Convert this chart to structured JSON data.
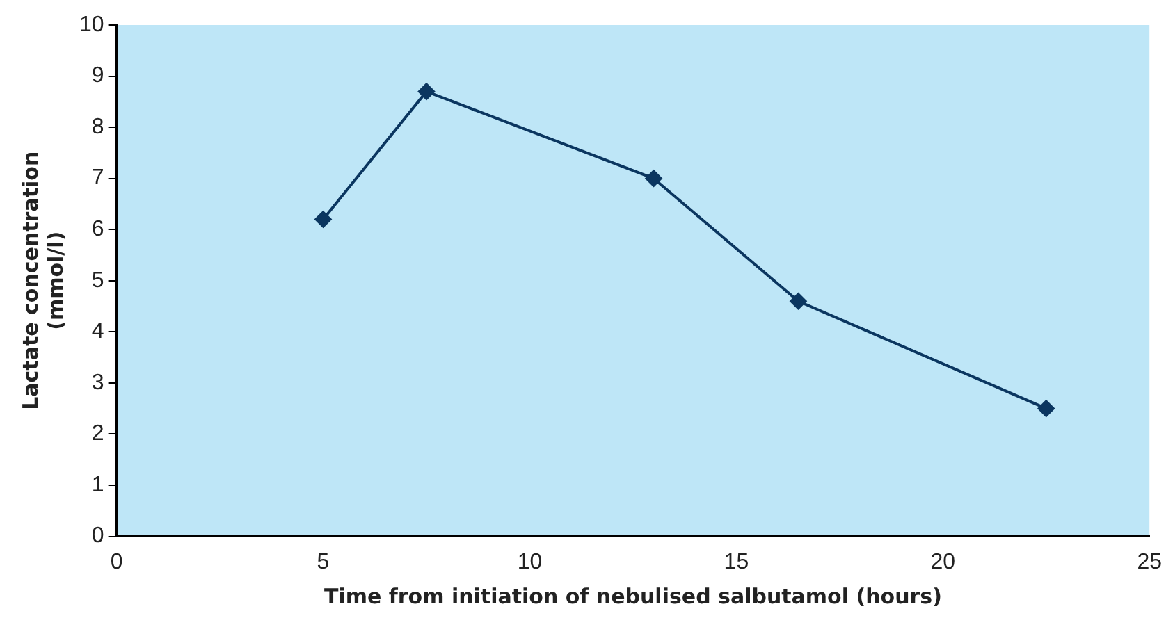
{
  "chart_data": {
    "type": "line",
    "xlabel": "Time from initiation of nebulised salbutamol (hours)",
    "ylabel": "Lactate concentration\n(mmol/l)",
    "x": [
      5,
      7.5,
      13,
      16.5,
      22.5
    ],
    "series": [
      {
        "color": "#0b3660",
        "values": [
          6.2,
          8.7,
          7.0,
          4.6,
          2.5
        ]
      }
    ],
    "xlim": [
      0,
      25
    ],
    "xticks": [
      0,
      5,
      10,
      15,
      20,
      25
    ],
    "ylim": [
      0,
      10
    ],
    "yticks": [
      0,
      1,
      2,
      3,
      4,
      5,
      6,
      7,
      8,
      9,
      10
    ],
    "grid": false,
    "legend": false,
    "marker": "diamond",
    "line_style": "solid"
  }
}
